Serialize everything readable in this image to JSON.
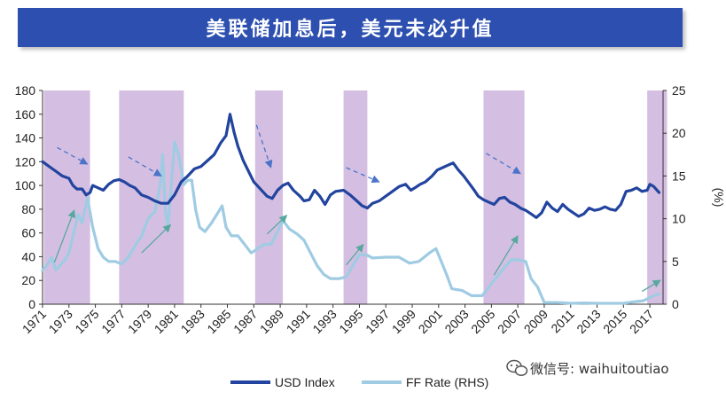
{
  "title": "美联储加息后，美元未必升值",
  "watermark": {
    "icon": "wechat-icon",
    "text": "微信号: waihuitoutiao"
  },
  "colors": {
    "usd": "#22449e",
    "ff": "#9fcbe3",
    "shade": "#cdb4dd",
    "arrow_dashed": "#4a73c9",
    "arrow_solid": "#58a8a0",
    "title_bg": "#2d4fb0"
  },
  "chart_data": {
    "type": "line",
    "title": "美联储加息后，美元未必升值",
    "xlabel": "",
    "ylabel_left": "",
    "ylabel_right": "(%)",
    "x_range": [
      1971,
      2018
    ],
    "ylim_left": [
      0,
      180
    ],
    "ylim_right": [
      0,
      25
    ],
    "yticks_left": [
      0,
      20,
      40,
      60,
      80,
      100,
      120,
      140,
      160,
      180
    ],
    "yticks_right": [
      0,
      5,
      10,
      15,
      20,
      25
    ],
    "xticks": [
      "1971",
      "1973",
      "1975",
      "1977",
      "1979",
      "1981",
      "1983",
      "1985",
      "1987",
      "1989",
      "1991",
      "1993",
      "1995",
      "1997",
      "1999",
      "2001",
      "2003",
      "2005",
      "2007",
      "2009",
      "2011",
      "2013",
      "2015",
      "2017"
    ],
    "legend": [
      "USD Index",
      "FF Rate (RHS)"
    ],
    "shaded_periods": [
      [
        1971.1,
        1974.6
      ],
      [
        1976.8,
        1981.7
      ],
      [
        1987.1,
        1989.2
      ],
      [
        1993.8,
        1995.6
      ],
      [
        2004.4,
        2007.5
      ],
      [
        2016.8,
        2018.3
      ]
    ],
    "series": [
      {
        "name": "USD Index",
        "axis": "left",
        "points": [
          [
            1971.0,
            120
          ],
          [
            1971.5,
            116
          ],
          [
            1972.0,
            112
          ],
          [
            1972.5,
            108
          ],
          [
            1973.0,
            106
          ],
          [
            1973.3,
            100
          ],
          [
            1973.6,
            97
          ],
          [
            1974.0,
            97
          ],
          [
            1974.3,
            92
          ],
          [
            1974.6,
            94
          ],
          [
            1974.8,
            100
          ],
          [
            1975.2,
            98
          ],
          [
            1975.6,
            96
          ],
          [
            1976.0,
            101
          ],
          [
            1976.4,
            104
          ],
          [
            1976.8,
            105
          ],
          [
            1977.2,
            103
          ],
          [
            1977.6,
            100
          ],
          [
            1978.0,
            98
          ],
          [
            1978.5,
            92
          ],
          [
            1979.0,
            90
          ],
          [
            1979.5,
            87
          ],
          [
            1980.0,
            85
          ],
          [
            1980.5,
            85
          ],
          [
            1981.0,
            92
          ],
          [
            1981.5,
            103
          ],
          [
            1982.0,
            108
          ],
          [
            1982.5,
            114
          ],
          [
            1983.0,
            116
          ],
          [
            1983.5,
            121
          ],
          [
            1984.0,
            126
          ],
          [
            1984.5,
            136
          ],
          [
            1984.9,
            142
          ],
          [
            1985.2,
            160
          ],
          [
            1985.5,
            145
          ],
          [
            1985.8,
            133
          ],
          [
            1986.2,
            121
          ],
          [
            1986.6,
            112
          ],
          [
            1987.0,
            103
          ],
          [
            1987.5,
            97
          ],
          [
            1988.0,
            91
          ],
          [
            1988.4,
            89
          ],
          [
            1988.8,
            96
          ],
          [
            1989.2,
            100
          ],
          [
            1989.6,
            102
          ],
          [
            1990.0,
            96
          ],
          [
            1990.5,
            91
          ],
          [
            1990.8,
            87
          ],
          [
            1991.2,
            88
          ],
          [
            1991.6,
            96
          ],
          [
            1992.0,
            91
          ],
          [
            1992.4,
            84
          ],
          [
            1992.8,
            92
          ],
          [
            1993.2,
            95
          ],
          [
            1993.8,
            96
          ],
          [
            1994.3,
            92
          ],
          [
            1994.8,
            87
          ],
          [
            1995.2,
            83
          ],
          [
            1995.6,
            81
          ],
          [
            1996.0,
            85
          ],
          [
            1996.5,
            87
          ],
          [
            1997.0,
            91
          ],
          [
            1997.5,
            95
          ],
          [
            1998.0,
            99
          ],
          [
            1998.5,
            101
          ],
          [
            1998.9,
            96
          ],
          [
            1999.2,
            98
          ],
          [
            1999.6,
            101
          ],
          [
            2000.0,
            103
          ],
          [
            2000.5,
            108
          ],
          [
            2000.9,
            113
          ],
          [
            2001.3,
            115
          ],
          [
            2001.7,
            117
          ],
          [
            2002.1,
            119
          ],
          [
            2002.5,
            113
          ],
          [
            2002.9,
            108
          ],
          [
            2003.3,
            102
          ],
          [
            2003.7,
            96
          ],
          [
            2004.0,
            91
          ],
          [
            2004.4,
            88
          ],
          [
            2004.8,
            86
          ],
          [
            2005.2,
            84
          ],
          [
            2005.6,
            89
          ],
          [
            2006.0,
            90
          ],
          [
            2006.4,
            86
          ],
          [
            2006.8,
            84
          ],
          [
            2007.2,
            81
          ],
          [
            2007.6,
            79
          ],
          [
            2008.0,
            76
          ],
          [
            2008.4,
            73
          ],
          [
            2008.8,
            77
          ],
          [
            2009.2,
            86
          ],
          [
            2009.6,
            81
          ],
          [
            2010.0,
            78
          ],
          [
            2010.4,
            84
          ],
          [
            2010.8,
            80
          ],
          [
            2011.2,
            77
          ],
          [
            2011.6,
            74
          ],
          [
            2012.0,
            76
          ],
          [
            2012.4,
            81
          ],
          [
            2012.8,
            79
          ],
          [
            2013.2,
            80
          ],
          [
            2013.6,
            82
          ],
          [
            2014.0,
            80
          ],
          [
            2014.4,
            79
          ],
          [
            2014.8,
            84
          ],
          [
            2015.2,
            95
          ],
          [
            2015.6,
            96
          ],
          [
            2016.0,
            98
          ],
          [
            2016.4,
            95
          ],
          [
            2016.8,
            96
          ],
          [
            2017.0,
            101
          ],
          [
            2017.3,
            99
          ],
          [
            2017.7,
            94
          ]
        ]
      },
      {
        "name": "FF Rate (RHS)",
        "axis": "right",
        "points": [
          [
            1971.0,
            4.0
          ],
          [
            1971.3,
            4.5
          ],
          [
            1971.7,
            5.5
          ],
          [
            1972.0,
            4.0
          ],
          [
            1972.3,
            4.5
          ],
          [
            1972.7,
            5.2
          ],
          [
            1973.0,
            6.0
          ],
          [
            1973.3,
            8.0
          ],
          [
            1973.7,
            10.5
          ],
          [
            1974.0,
            9.5
          ],
          [
            1974.4,
            12.5
          ],
          [
            1974.8,
            9.0
          ],
          [
            1975.2,
            6.5
          ],
          [
            1975.6,
            5.5
          ],
          [
            1976.0,
            5.0
          ],
          [
            1976.5,
            5.0
          ],
          [
            1977.0,
            4.7
          ],
          [
            1977.5,
            5.5
          ],
          [
            1978.0,
            6.8
          ],
          [
            1978.5,
            8.0
          ],
          [
            1979.0,
            10.0
          ],
          [
            1979.5,
            10.8
          ],
          [
            1979.9,
            13.8
          ],
          [
            1980.1,
            17.5
          ],
          [
            1980.3,
            11.0
          ],
          [
            1980.5,
            9.0
          ],
          [
            1980.8,
            15.0
          ],
          [
            1981.0,
            19.0
          ],
          [
            1981.3,
            17.5
          ],
          [
            1981.7,
            14.0
          ],
          [
            1982.0,
            14.5
          ],
          [
            1982.3,
            14.5
          ],
          [
            1982.6,
            11.0
          ],
          [
            1982.9,
            9.0
          ],
          [
            1983.3,
            8.5
          ],
          [
            1983.8,
            9.5
          ],
          [
            1984.2,
            10.5
          ],
          [
            1984.6,
            11.5
          ],
          [
            1984.9,
            9.0
          ],
          [
            1985.3,
            8.0
          ],
          [
            1985.8,
            8.0
          ],
          [
            1986.3,
            7.0
          ],
          [
            1986.8,
            6.0
          ],
          [
            1987.3,
            6.5
          ],
          [
            1987.8,
            7.0
          ],
          [
            1988.3,
            7.0
          ],
          [
            1988.8,
            8.5
          ],
          [
            1989.2,
            9.8
          ],
          [
            1989.7,
            8.8
          ],
          [
            1990.3,
            8.2
          ],
          [
            1990.8,
            7.5
          ],
          [
            1991.3,
            6.0
          ],
          [
            1991.8,
            4.5
          ],
          [
            1992.3,
            3.5
          ],
          [
            1992.8,
            3.0
          ],
          [
            1993.5,
            3.0
          ],
          [
            1994.0,
            3.2
          ],
          [
            1994.5,
            4.5
          ],
          [
            1995.0,
            5.8
          ],
          [
            1995.5,
            5.8
          ],
          [
            1996.0,
            5.4
          ],
          [
            1997.0,
            5.5
          ],
          [
            1998.0,
            5.5
          ],
          [
            1998.8,
            4.8
          ],
          [
            1999.5,
            5.0
          ],
          [
            2000.3,
            6.0
          ],
          [
            2000.8,
            6.5
          ],
          [
            2001.2,
            5.0
          ],
          [
            2001.6,
            3.5
          ],
          [
            2002.0,
            1.8
          ],
          [
            2002.8,
            1.6
          ],
          [
            2003.5,
            1.0
          ],
          [
            2004.3,
            1.0
          ],
          [
            2004.8,
            2.0
          ],
          [
            2005.4,
            3.2
          ],
          [
            2006.0,
            4.3
          ],
          [
            2006.5,
            5.2
          ],
          [
            2007.0,
            5.2
          ],
          [
            2007.6,
            5.0
          ],
          [
            2008.0,
            3.0
          ],
          [
            2008.5,
            2.0
          ],
          [
            2009.0,
            0.2
          ],
          [
            2010.0,
            0.2
          ],
          [
            2011.0,
            0.1
          ],
          [
            2012.0,
            0.15
          ],
          [
            2013.0,
            0.1
          ],
          [
            2014.0,
            0.1
          ],
          [
            2015.0,
            0.1
          ],
          [
            2015.9,
            0.3
          ],
          [
            2016.5,
            0.4
          ],
          [
            2016.9,
            0.7
          ],
          [
            2017.3,
            1.0
          ],
          [
            2017.7,
            1.2
          ]
        ]
      }
    ],
    "annotations": [
      {
        "style": "dashed",
        "from": [
          1972.1,
          132
        ],
        "to": [
          1974.4,
          118
        ]
      },
      {
        "style": "dashed",
        "from": [
          1977.5,
          124
        ],
        "to": [
          1980.0,
          108
        ]
      },
      {
        "style": "dashed",
        "from": [
          1987.2,
          151
        ],
        "to": [
          1988.3,
          115
        ]
      },
      {
        "style": "dashed",
        "from": [
          1994.0,
          115
        ],
        "to": [
          1996.5,
          103
        ]
      },
      {
        "style": "dashed",
        "from": [
          2004.6,
          127
        ],
        "to": [
          2007.2,
          110
        ]
      },
      {
        "style": "solid",
        "axis": "right",
        "from": [
          1971.9,
          4.9
        ],
        "to": [
          1973.4,
          11.0
        ]
      },
      {
        "style": "solid",
        "axis": "right",
        "from": [
          1978.5,
          6.0
        ],
        "to": [
          1980.7,
          9.3
        ]
      },
      {
        "style": "solid",
        "axis": "right",
        "from": [
          1988.0,
          8.2
        ],
        "to": [
          1989.5,
          10.4
        ]
      },
      {
        "style": "solid",
        "axis": "right",
        "from": [
          1994.0,
          4.6
        ],
        "to": [
          1995.3,
          7.0
        ]
      },
      {
        "style": "solid",
        "axis": "right",
        "from": [
          2005.2,
          3.4
        ],
        "to": [
          2007.0,
          8.0
        ]
      },
      {
        "style": "solid",
        "axis": "right",
        "from": [
          2016.4,
          1.5
        ],
        "to": [
          2017.8,
          2.8
        ]
      }
    ]
  }
}
